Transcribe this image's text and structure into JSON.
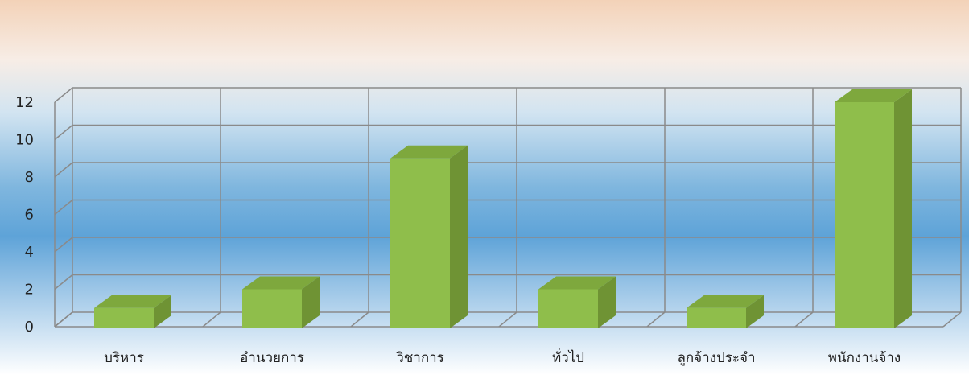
{
  "chart_data": {
    "type": "bar",
    "title": "",
    "xlabel": "",
    "ylabel": "",
    "categories": [
      "บริหาร",
      "อำนวยการ",
      "วิชาการ",
      "ทั่วไป",
      "ลูกจ้างประจำ",
      "พนักงานจ้าง"
    ],
    "values": [
      1,
      2,
      9,
      2,
      1,
      12
    ],
    "ylim": [
      0,
      12
    ],
    "yticks": [
      "0",
      "2",
      "4",
      "6",
      "8",
      "10",
      "12"
    ],
    "grid": true,
    "legend": "none",
    "style": "3d-column",
    "colors": {
      "bar_front": "#8fbe4b",
      "bar_top": "#7ea83d",
      "bar_side": "#6f9334",
      "grid": "#8a8a8a"
    }
  }
}
